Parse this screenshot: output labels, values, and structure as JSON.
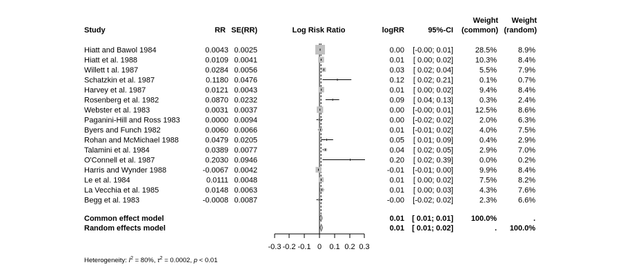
{
  "headers": {
    "study": "Study",
    "rr": "RR",
    "se": "SE(RR)",
    "plot": "Log Risk Ratio",
    "logrr": "logRR",
    "ci": "95%-CI",
    "weight_common_1": "Weight",
    "weight_common_2": "(common)",
    "weight_random_1": "Weight",
    "weight_random_2": "(random)"
  },
  "studies": [
    {
      "name": "Hiatt and Bawol 1984",
      "rr": "0.0043",
      "se": "0.0025",
      "logrr": "0.00",
      "ci": "[-0.00; 0.01]",
      "w_common": "28.5%",
      "w_random": "8.9%"
    },
    {
      "name": "Hiatt et al. 1988",
      "rr": "0.0109",
      "se": "0.0041",
      "logrr": "0.01",
      "ci": "[ 0.00; 0.02]",
      "w_common": "10.3%",
      "w_random": "8.4%"
    },
    {
      "name": "Willett t al. 1987",
      "rr": "0.0284",
      "se": "0.0056",
      "logrr": "0.03",
      "ci": "[ 0.02; 0.04]",
      "w_common": "5.5%",
      "w_random": "7.9%"
    },
    {
      "name": "Schatzkin et al. 1987",
      "rr": "0.1180",
      "se": "0.0476",
      "logrr": "0.12",
      "ci": "[ 0.02; 0.21]",
      "w_common": "0.1%",
      "w_random": "0.7%"
    },
    {
      "name": "Harvey et al. 1987",
      "rr": "0.0121",
      "se": "0.0043",
      "logrr": "0.01",
      "ci": "[ 0.00; 0.02]",
      "w_common": "9.4%",
      "w_random": "8.4%"
    },
    {
      "name": "Rosenberg et al. 1982",
      "rr": "0.0870",
      "se": "0.0232",
      "logrr": "0.09",
      "ci": "[ 0.04; 0.13]",
      "w_common": "0.3%",
      "w_random": "2.4%"
    },
    {
      "name": "Webster et al. 1983",
      "rr": "0.0031",
      "se": "0.0037",
      "logrr": "0.00",
      "ci": "[-0.00; 0.01]",
      "w_common": "12.5%",
      "w_random": "8.6%"
    },
    {
      "name": "Paganini-Hill and Ross 1983",
      "rr": "0.0000",
      "se": "0.0094",
      "logrr": "0.00",
      "ci": "[-0.02; 0.02]",
      "w_common": "2.0%",
      "w_random": "6.3%"
    },
    {
      "name": "Byers and Funch 1982",
      "rr": "0.0060",
      "se": "0.0066",
      "logrr": "0.01",
      "ci": "[-0.01; 0.02]",
      "w_common": "4.0%",
      "w_random": "7.5%"
    },
    {
      "name": "Rohan and McMichael 1988",
      "rr": "0.0479",
      "se": "0.0205",
      "logrr": "0.05",
      "ci": "[ 0.01; 0.09]",
      "w_common": "0.4%",
      "w_random": "2.9%"
    },
    {
      "name": "Talamini et al. 1984",
      "rr": "0.0389",
      "se": "0.0077",
      "logrr": "0.04",
      "ci": "[ 0.02; 0.05]",
      "w_common": "2.9%",
      "w_random": "7.0%"
    },
    {
      "name": "O'Connell et al. 1987",
      "rr": "0.2030",
      "se": "0.0946",
      "logrr": "0.20",
      "ci": "[ 0.02; 0.39]",
      "w_common": "0.0%",
      "w_random": "0.2%"
    },
    {
      "name": "Harris and Wynder 1988",
      "rr": "-0.0067",
      "se": "0.0042",
      "logrr": "-0.01",
      "ci": "[-0.01; 0.00]",
      "w_common": "9.9%",
      "w_random": "8.4%"
    },
    {
      "name": "Le et al. 1984",
      "rr": "0.0111",
      "se": "0.0048",
      "logrr": "0.01",
      "ci": "[ 0.00; 0.02]",
      "w_common": "7.5%",
      "w_random": "8.2%"
    },
    {
      "name": "La Vecchia et al. 1985",
      "rr": "0.0148",
      "se": "0.0063",
      "logrr": "0.01",
      "ci": "[ 0.00; 0.03]",
      "w_common": "4.3%",
      "w_random": "7.6%"
    },
    {
      "name": "Begg et al. 1983",
      "rr": "-0.0008",
      "se": "0.0087",
      "logrr": "-0.00",
      "ci": "[-0.02; 0.02]",
      "w_common": "2.3%",
      "w_random": "6.6%"
    }
  ],
  "summaries": [
    {
      "name": "Common effect model",
      "logrr": "0.01",
      "ci": "[ 0.01; 0.01]",
      "w_common": "100.0%",
      "w_random": "."
    },
    {
      "name": "Random effects model",
      "logrr": "0.01",
      "ci": "[ 0.01; 0.02]",
      "w_common": ".",
      "w_random": "100.0%"
    }
  ],
  "heterogeneity": {
    "prefix": "Heterogeneity: ",
    "i2_symbol": "I",
    "i2_value": " = 80%, ",
    "tau_symbol": "τ",
    "tau_value": " = 0.0002, ",
    "p_symbol": "p",
    "p_value": " < 0.01"
  },
  "chart_data": {
    "type": "forest",
    "xlabel": "Log Risk Ratio",
    "xlim": [
      -0.3,
      0.3
    ],
    "ticks": [
      -0.3,
      -0.2,
      -0.1,
      0,
      0.1,
      0.2,
      0.3
    ],
    "tick_labels": [
      "-0.3",
      "-0.2",
      "-0.1",
      "0",
      "0.1",
      "0.2",
      "0.3"
    ],
    "colors": {
      "square": "#c0c0c0",
      "line": "#000000",
      "diamond": "#c0c0c0"
    },
    "studies": [
      {
        "est": 0.0043,
        "lower": -0.0,
        "upper": 0.01,
        "weight": 28.5
      },
      {
        "est": 0.0109,
        "lower": 0.0,
        "upper": 0.02,
        "weight": 10.3
      },
      {
        "est": 0.0284,
        "lower": 0.02,
        "upper": 0.04,
        "weight": 5.5
      },
      {
        "est": 0.118,
        "lower": 0.02,
        "upper": 0.21,
        "weight": 0.1
      },
      {
        "est": 0.0121,
        "lower": 0.0,
        "upper": 0.02,
        "weight": 9.4
      },
      {
        "est": 0.087,
        "lower": 0.04,
        "upper": 0.13,
        "weight": 0.3
      },
      {
        "est": 0.0031,
        "lower": -0.0,
        "upper": 0.01,
        "weight": 12.5
      },
      {
        "est": 0.0,
        "lower": -0.02,
        "upper": 0.02,
        "weight": 2.0
      },
      {
        "est": 0.006,
        "lower": -0.01,
        "upper": 0.02,
        "weight": 4.0
      },
      {
        "est": 0.0479,
        "lower": 0.01,
        "upper": 0.09,
        "weight": 0.4
      },
      {
        "est": 0.0389,
        "lower": 0.02,
        "upper": 0.05,
        "weight": 2.9
      },
      {
        "est": 0.203,
        "lower": 0.02,
        "upper": 0.39,
        "weight": 0.0
      },
      {
        "est": -0.0067,
        "lower": -0.01,
        "upper": 0.0,
        "weight": 9.9
      },
      {
        "est": 0.0111,
        "lower": 0.0,
        "upper": 0.02,
        "weight": 7.5
      },
      {
        "est": 0.0148,
        "lower": 0.0,
        "upper": 0.03,
        "weight": 4.3
      },
      {
        "est": -0.0008,
        "lower": -0.02,
        "upper": 0.02,
        "weight": 2.3
      }
    ],
    "summaries": [
      {
        "name": "Common effect model",
        "est": 0.01,
        "lower": 0.01,
        "upper": 0.01
      },
      {
        "name": "Random effects model",
        "est": 0.012,
        "lower": 0.01,
        "upper": 0.02
      }
    ]
  }
}
